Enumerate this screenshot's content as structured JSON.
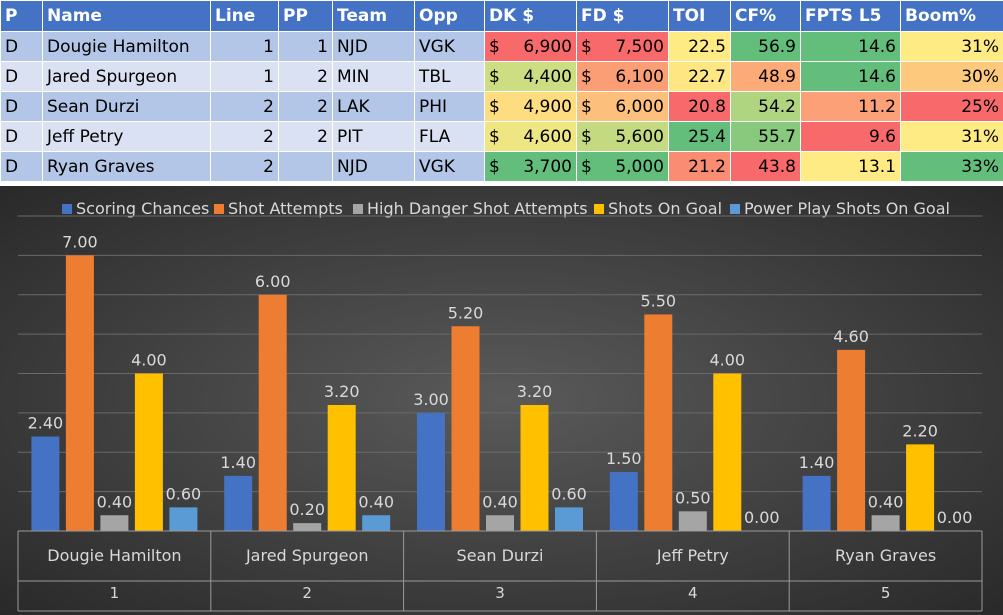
{
  "table": {
    "headers": [
      "P",
      "Name",
      "Line",
      "PP",
      "Team",
      "Opp",
      "DK $",
      "FD $",
      "TOI",
      "CF%",
      "FPTS L5",
      "Boom%"
    ],
    "rows": [
      {
        "p": "D",
        "name": "Dougie Hamilton",
        "line": "1",
        "pp": "1",
        "team": "NJD",
        "opp": "VGK",
        "dk": "6,900",
        "fd": "7,500",
        "toi": "22.5",
        "cf": "56.9",
        "fpts": "14.6",
        "boom": "31%",
        "colors": {
          "dk": "#f8696b",
          "fd": "#f8696b",
          "toi": "#ffeb84",
          "cf": "#63be7b",
          "fpts": "#63be7b",
          "boom": "#ffeb84"
        }
      },
      {
        "p": "D",
        "name": "Jared Spurgeon",
        "line": "1",
        "pp": "2",
        "team": "MIN",
        "opp": "TBL",
        "dk": "4,400",
        "fd": "6,100",
        "toi": "22.7",
        "cf": "48.9",
        "fpts": "14.6",
        "boom": "30%",
        "colors": {
          "dk": "#cddd82",
          "fd": "#fb9d75",
          "toi": "#fee683",
          "cf": "#fcaa78",
          "fpts": "#63be7b",
          "boom": "#fdca7d"
        }
      },
      {
        "p": "D",
        "name": "Sean Durzi",
        "line": "2",
        "pp": "2",
        "team": "LAK",
        "opp": "PHI",
        "dk": "4,900",
        "fd": "6,000",
        "toi": "20.8",
        "cf": "54.2",
        "fpts": "11.2",
        "boom": "25%",
        "colors": {
          "dk": "#fedd81",
          "fd": "#fdc07c",
          "toi": "#f8696b",
          "cf": "#b0d580",
          "fpts": "#fca077",
          "boom": "#f8696b"
        }
      },
      {
        "p": "D",
        "name": "Jeff Petry",
        "line": "2",
        "pp": "2",
        "team": "PIT",
        "opp": "FLA",
        "dk": "4,600",
        "fd": "5,600",
        "toi": "25.4",
        "cf": "55.7",
        "fpts": "9.6",
        "boom": "31%",
        "colors": {
          "dk": "#eee583",
          "fd": "#c4da81",
          "toi": "#63be7b",
          "cf": "#89c97e",
          "fpts": "#f8696b",
          "boom": "#ffeb84"
        }
      },
      {
        "p": "D",
        "name": "Ryan Graves",
        "line": "2",
        "pp": "",
        "team": "NJD",
        "opp": "VGK",
        "dk": "3,700",
        "fd": "5,000",
        "toi": "21.2",
        "cf": "43.8",
        "fpts": "13.1",
        "boom": "33%",
        "colors": {
          "dk": "#63be7b",
          "fd": "#63be7b",
          "toi": "#fa8c72",
          "cf": "#f8696b",
          "fpts": "#ffeb84",
          "boom": "#63be7b"
        }
      }
    ],
    "currency": "$"
  },
  "chart_data": {
    "type": "bar",
    "categories": [
      "Dougie Hamilton",
      "Jared Spurgeon",
      "Sean Durzi",
      "Jeff Petry",
      "Ryan Graves"
    ],
    "category_numbers": [
      "1",
      "2",
      "3",
      "4",
      "5"
    ],
    "series": [
      {
        "name": "Scoring Chances",
        "values": [
          2.4,
          1.4,
          3.0,
          1.5,
          1.4
        ],
        "labels": [
          "2.40",
          "1.40",
          "3.00",
          "1.50",
          "1.40"
        ],
        "color": "#4472c4"
      },
      {
        "name": "Shot Attempts",
        "values": [
          7.0,
          6.0,
          5.2,
          5.5,
          4.6
        ],
        "labels": [
          "7.00",
          "6.00",
          "5.20",
          "5.50",
          "4.60"
        ],
        "color": "#ed7d31"
      },
      {
        "name": "High Danger Shot Attempts",
        "values": [
          0.4,
          0.2,
          0.4,
          0.5,
          0.4
        ],
        "labels": [
          "0.40",
          "0.20",
          "0.40",
          "0.50",
          "0.40"
        ],
        "color": "#a5a5a5"
      },
      {
        "name": "Shots On Goal",
        "values": [
          4.0,
          3.2,
          3.2,
          4.0,
          2.2
        ],
        "labels": [
          "4.00",
          "3.20",
          "3.20",
          "4.00",
          "2.20"
        ],
        "color": "#ffc000"
      },
      {
        "name": "Power Play Shots On Goal",
        "values": [
          0.6,
          0.4,
          0.6,
          0.0,
          0.0
        ],
        "labels": [
          "0.60",
          "0.40",
          "0.60",
          "0.00",
          "0.00"
        ],
        "color": "#5b9bd5"
      }
    ],
    "ylim": [
      0,
      8
    ],
    "grid": true,
    "legend": "top",
    "title": "",
    "xlabel": "",
    "ylabel": "",
    "background": "#404040"
  }
}
